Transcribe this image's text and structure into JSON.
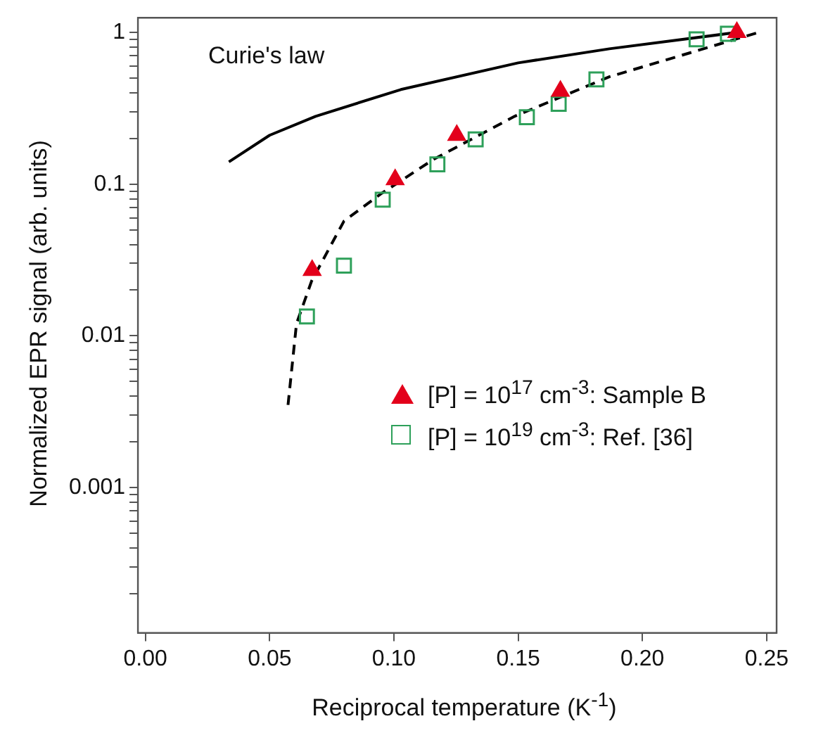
{
  "chart_data": {
    "type": "scatter",
    "xlabel": "Reciprocal temperature (K$^{-1}$)",
    "ylabel": "Normalized EPR signal (arb. units)",
    "log": "y",
    "grid": false,
    "legend": "right",
    "xlim": [
      -0.003,
      0.254
    ],
    "ylim": [
      0.00011,
      1.25
    ],
    "xticks": [
      {
        "value": 0,
        "label": "0.00"
      },
      {
        "value": 0.05,
        "label": "0.05"
      },
      {
        "value": 0.1,
        "label": "0.10"
      },
      {
        "value": 0.15,
        "label": "0.15"
      },
      {
        "value": 0.2,
        "label": "0.20"
      },
      {
        "value": 0.25,
        "label": "0.25"
      }
    ],
    "yticks": [
      {
        "value": 0.0002,
        "label": null
      },
      {
        "value": 0.0003,
        "label": null
      },
      {
        "value": 0.0004,
        "label": null
      },
      {
        "value": 0.0005,
        "label": null
      },
      {
        "value": 0.0006,
        "label": null
      },
      {
        "value": 0.0007,
        "label": null
      },
      {
        "value": 0.0008,
        "label": null
      },
      {
        "value": 0.0009,
        "label": null
      },
      {
        "value": 0.001,
        "label": "0.001"
      },
      {
        "value": 0.002,
        "label": null
      },
      {
        "value": 0.003,
        "label": null
      },
      {
        "value": 0.004,
        "label": null
      },
      {
        "value": 0.005,
        "label": null
      },
      {
        "value": 0.006,
        "label": null
      },
      {
        "value": 0.007,
        "label": null
      },
      {
        "value": 0.008,
        "label": null
      },
      {
        "value": 0.009,
        "label": null
      },
      {
        "value": 0.01,
        "label": "0.01"
      },
      {
        "value": 0.02,
        "label": null
      },
      {
        "value": 0.03,
        "label": null
      },
      {
        "value": 0.04,
        "label": null
      },
      {
        "value": 0.05,
        "label": null
      },
      {
        "value": 0.06,
        "label": null
      },
      {
        "value": 0.07,
        "label": null
      },
      {
        "value": 0.08,
        "label": null
      },
      {
        "value": 0.09,
        "label": null
      },
      {
        "value": 0.1,
        "label": "0.1"
      },
      {
        "value": 0.2,
        "label": null
      },
      {
        "value": 0.3,
        "label": null
      },
      {
        "value": 0.4,
        "label": null
      },
      {
        "value": 0.5,
        "label": null
      },
      {
        "value": 0.6,
        "label": null
      },
      {
        "value": 0.7,
        "label": null
      },
      {
        "value": 0.8,
        "label": null
      },
      {
        "value": 0.9,
        "label": null
      },
      {
        "value": 1,
        "label": "1"
      }
    ],
    "series": [
      {
        "name": "Curie's law",
        "type": "line",
        "color": "#000000",
        "line_style": "solid",
        "marker": "none",
        "x": [
          0.0336,
          0.05,
          0.0685,
          0.1028,
          0.15,
          0.1867,
          0.238
        ],
        "values": [
          0.14,
          0.21,
          0.28,
          0.42,
          0.63,
          0.78,
          1.0
        ]
      },
      {
        "type": "line",
        "color": "#000000",
        "line_style": "dashed",
        "marker": "none",
        "x": [
          0.0574,
          0.0608,
          0.0669,
          0.0799,
          0.0951,
          0.1161,
          0.1486,
          0.1867,
          0.2467
        ],
        "values": [
          0.0035,
          0.012,
          0.023,
          0.057,
          0.087,
          0.146,
          0.28,
          0.51,
          1.0
        ]
      },
      {
        "name": "[P] = 10$^{17}$ cm$^{-3}$: Sample B",
        "color": "#e3001b",
        "marker": "triangle",
        "x": [
          0.0671,
          0.1005,
          0.1253,
          0.167,
          0.238
        ],
        "values": [
          0.027,
          0.107,
          0.21,
          0.41,
          1.0
        ]
      },
      {
        "name": "[P] = 10$^{19}$ cm$^{-3}$: Ref. [36]",
        "color": "#2ea05a",
        "marker": "square",
        "x": [
          0.065,
          0.0799,
          0.0955,
          0.1175,
          0.1329,
          0.1535,
          0.1663,
          0.1815,
          0.2218,
          0.2344
        ],
        "values": [
          0.0134,
          0.029,
          0.079,
          0.135,
          0.197,
          0.276,
          0.338,
          0.49,
          0.9,
          0.98
        ]
      }
    ]
  }
}
